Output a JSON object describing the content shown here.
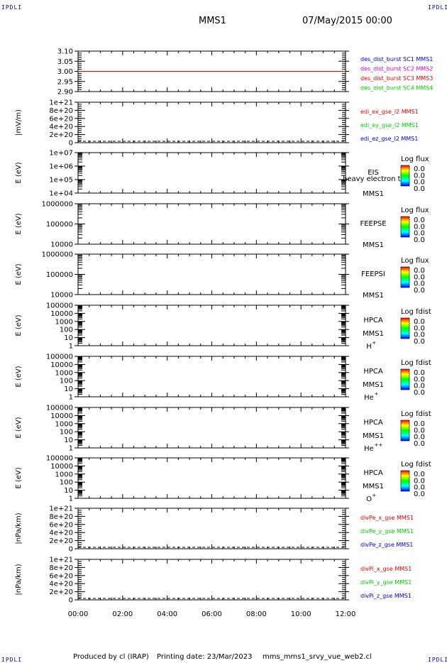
{
  "corner_label": "IPDLI",
  "header": {
    "title": "MMS1",
    "date": "07/May/2015 00:00"
  },
  "footer": {
    "producer": "Produced by cl (IRAP)",
    "printing": "Printing date: 23/Mar/2023",
    "file": "mms_mms1_srvy_vue_web2.cl"
  },
  "colors": {
    "red": "#e00000",
    "green": "#00cc00",
    "blue": "#0000cc",
    "magenta": "#cc00cc",
    "black": "#000000"
  },
  "chart_data": {
    "type": "line",
    "x_ticks": [
      "00:00",
      "02:00",
      "04:00",
      "06:00",
      "08:00",
      "10:00",
      "12:00"
    ],
    "xlim": [
      "00:00",
      "12:00"
    ],
    "panels": [
      {
        "id": "des",
        "ylabel": "",
        "scale": "linear",
        "ylim": [
          2.9,
          3.1
        ],
        "ticks": [
          "3.10",
          "3.05",
          "3.00",
          "2.95",
          "2.90"
        ],
        "series": [
          {
            "name": "des_dist_burst SC1 MMS1",
            "color": "#0000cc"
          },
          {
            "name": "des_dist_burst SC2 MMS2",
            "color": "#cc00cc"
          },
          {
            "name": "des_dist_burst SC3 MMS3",
            "color": "#e00000"
          },
          {
            "name": "des_dist_burst SC4 MMS4",
            "color": "#00cc00"
          }
        ],
        "lines": [
          {
            "y": 3.0,
            "color": "#e00000",
            "style": "solid"
          }
        ]
      },
      {
        "id": "edi",
        "ylabel": "|mV/m)",
        "scale": "linear",
        "ylim": [
          0,
          1e+21
        ],
        "ticks": [
          "1e+21",
          "8e+20",
          "6e+20",
          "4e+20",
          "2e+20",
          "0"
        ],
        "series": [
          {
            "name": "edi_ex_gse_l2 MMS1",
            "color": "#e00000"
          },
          {
            "name": "edi_ey_gse_l2 MMS1",
            "color": "#00cc00"
          },
          {
            "name": "edi_ez_gse_l2 MMS1",
            "color": "#0000cc"
          }
        ],
        "lines": [
          {
            "y": 0,
            "color": "#000000",
            "style": "dashed"
          }
        ]
      },
      {
        "id": "eis",
        "ylabel": "E (eV)",
        "scale": "log",
        "ylim": [
          10000.0,
          10000000.0
        ],
        "ticks": [
          "1e+07",
          "1e+06",
          "1e+05",
          "1e+04"
        ],
        "inst": [
          "EIS",
          "MMS1"
        ],
        "overlay": "heavy electron to",
        "cbar": "Log flux",
        "cvals": [
          "0.0",
          "0.0",
          "0.0",
          "0.0"
        ]
      },
      {
        "id": "feepse",
        "ylabel": "E (eV)",
        "scale": "log",
        "ylim": [
          10000.0,
          1000000.0
        ],
        "ticks": [
          "1000000",
          "100000",
          "10000"
        ],
        "inst": [
          "FEEPSE",
          "MMS1"
        ],
        "cbar": "Log flux",
        "cvals": [
          "0.0",
          "0.0",
          "0.0",
          "0.0"
        ]
      },
      {
        "id": "feepsi",
        "ylabel": "E (eV)",
        "scale": "log",
        "ylim": [
          10000.0,
          1000000.0
        ],
        "ticks": [
          "1000000",
          "100000",
          "10000"
        ],
        "inst": [
          "FEEPSI",
          "MMS1"
        ],
        "cbar": "Log flux",
        "cvals": [
          "0.0",
          "0.0",
          "0.0",
          "0.0"
        ]
      },
      {
        "id": "hpca-h",
        "ylabel": "E (eV)",
        "scale": "log",
        "ylim": [
          1,
          100000.0
        ],
        "ticks": [
          "100000",
          "10000",
          "1000",
          "100",
          "10",
          "1"
        ],
        "inst": [
          "HPCA",
          "MMS1"
        ],
        "species": "H",
        "sup": "+",
        "cbar": "Log fdist",
        "cvals": [
          "0.0",
          "0.0",
          "0.0",
          "0.0"
        ]
      },
      {
        "id": "hpca-he",
        "ylabel": "E (eV)",
        "scale": "log",
        "ylim": [
          1,
          100000.0
        ],
        "ticks": [
          "100000",
          "10000",
          "1000",
          "100",
          "10",
          "1"
        ],
        "inst": [
          "HPCA",
          "MMS1"
        ],
        "species": "He",
        "sup": "+",
        "cbar": "Log fdist",
        "cvals": [
          "0.0",
          "0.0",
          "0.0",
          "0.0"
        ]
      },
      {
        "id": "hpca-he2",
        "ylabel": "E (eV)",
        "scale": "log",
        "ylim": [
          1,
          100000.0
        ],
        "ticks": [
          "100000",
          "10000",
          "1000",
          "100",
          "10",
          "1"
        ],
        "inst": [
          "HPCA",
          "MMS1"
        ],
        "species": "He",
        "sup": "++",
        "cbar": "Log fdist",
        "cvals": [
          "0.0",
          "0.0",
          "0.0",
          "0.0"
        ]
      },
      {
        "id": "hpca-o",
        "ylabel": "E (eV)",
        "scale": "log",
        "ylim": [
          1,
          100000.0
        ],
        "ticks": [
          "100000",
          "10000",
          "1000",
          "100",
          "10",
          "1"
        ],
        "inst": [
          "HPCA",
          "MMS1"
        ],
        "species": "O",
        "sup": "+",
        "cbar": "Log fdist",
        "cvals": [
          "0.0",
          "0.0",
          "0.0",
          "0.0"
        ]
      },
      {
        "id": "divpe",
        "ylabel": "|nPa/km)",
        "scale": "linear",
        "ylim": [
          0,
          1e+21
        ],
        "ticks": [
          "1e+21",
          "8e+20",
          "6e+20",
          "4e+20",
          "2e+20",
          "0"
        ],
        "series": [
          {
            "name": "divPe_x_gse MMS1",
            "color": "#e00000"
          },
          {
            "name": "divPe_y_gse MMS1",
            "color": "#00cc00"
          },
          {
            "name": "divPe_z_gse MMS1",
            "color": "#0000cc"
          }
        ],
        "lines": [
          {
            "y": 0,
            "color": "#000000",
            "style": "dashed"
          }
        ]
      },
      {
        "id": "divpi",
        "ylabel": "|nPa/km)",
        "scale": "linear",
        "ylim": [
          0,
          1e+21
        ],
        "ticks": [
          "1e+21",
          "8e+20",
          "6e+20",
          "4e+20",
          "2e+20",
          "0"
        ],
        "series": [
          {
            "name": "divPi_x_gse MMS1",
            "color": "#e00000"
          },
          {
            "name": "divPi_y_gse MMS1",
            "color": "#00cc00"
          },
          {
            "name": "divPi_z_gse MMS1",
            "color": "#0000cc"
          }
        ],
        "lines": [
          {
            "y": 0,
            "color": "#000000",
            "style": "dashed"
          }
        ]
      }
    ]
  }
}
